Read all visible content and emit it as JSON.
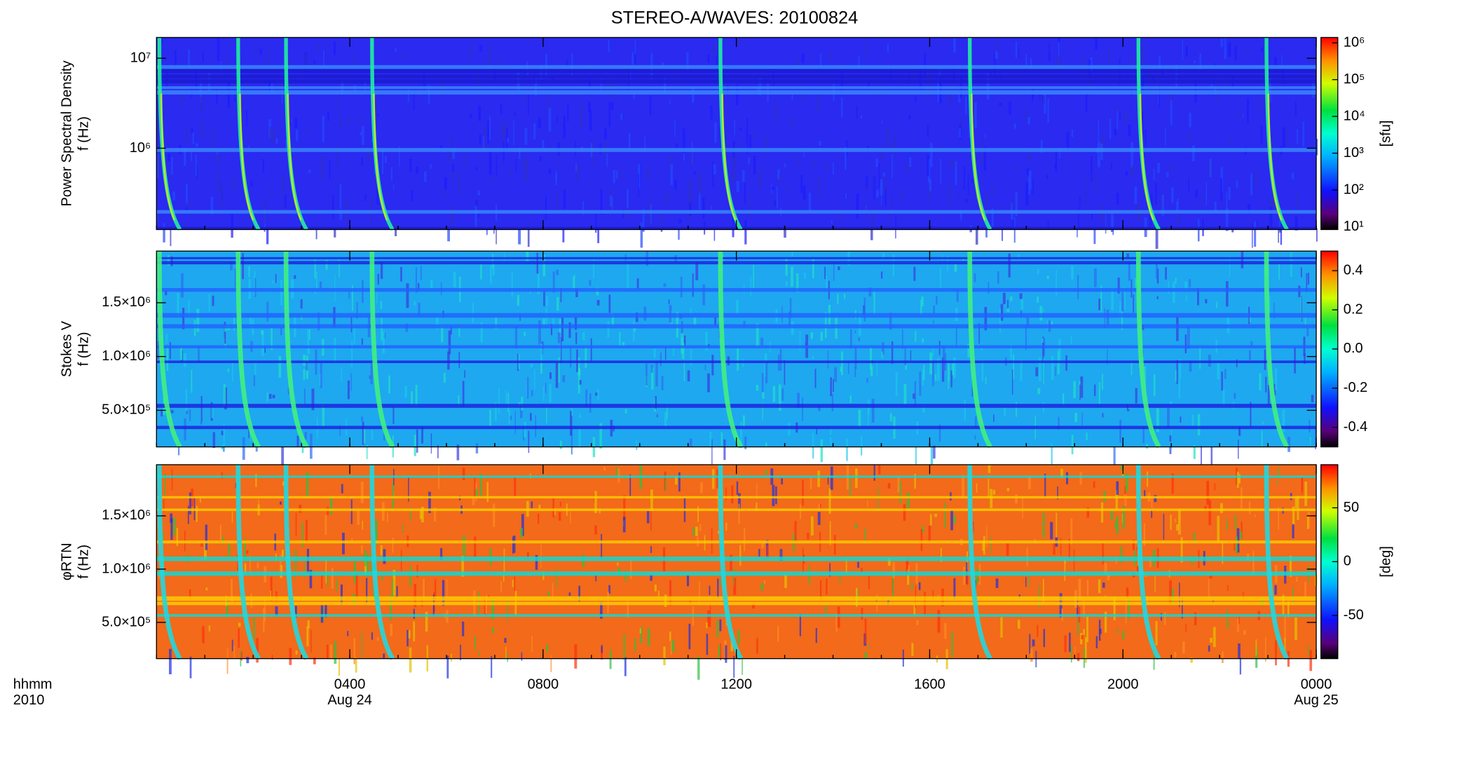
{
  "chart_data": [
    {
      "type": "heatmap",
      "title": "STEREO-A/WAVES: 20100824",
      "ylabel": [
        "Power Spectral Density",
        "f (Hz)"
      ],
      "log_y": true,
      "ylim": [
        125000,
        17000000
      ],
      "yticks": [
        {
          "value": 1000000,
          "label": "10⁶"
        },
        {
          "value": 10000000,
          "label": "10⁷"
        }
      ],
      "xlim": [
        0,
        24
      ],
      "colorbar": {
        "log": true,
        "clim": [
          8.4,
          1400000
        ],
        "label": "[sfu]",
        "ticks": [
          {
            "value": 10,
            "label": "10¹"
          },
          {
            "value": 100,
            "label": "10²"
          },
          {
            "value": 1000,
            "label": "10³"
          },
          {
            "value": 10000,
            "label": "10⁴"
          },
          {
            "value": 100000,
            "label": "10⁵"
          },
          {
            "value": 1000000,
            "label": "10⁶"
          }
        ]
      }
    },
    {
      "type": "heatmap",
      "ylabel": [
        "Stokes V",
        "f (Hz)"
      ],
      "log_y": false,
      "ylim": [
        160000,
        1980000
      ],
      "yticks": [
        {
          "value": 500000,
          "label": "5.0×10⁵"
        },
        {
          "value": 1000000,
          "label": "1.0×10⁶"
        },
        {
          "value": 1500000,
          "label": "1.5×10⁶"
        }
      ],
      "xlim": [
        0,
        24
      ],
      "colorbar": {
        "log": false,
        "clim": [
          -0.5,
          0.5
        ],
        "label": "",
        "ticks": [
          -0.4,
          -0.2,
          {
            "value": 0,
            "label": "0.0"
          },
          0.2,
          0.4
        ]
      }
    },
    {
      "type": "heatmap",
      "ylabel": [
        "φRTN",
        "f (Hz)"
      ],
      "log_y": false,
      "ylim": [
        160000,
        1980000
      ],
      "yticks": [
        {
          "value": 500000,
          "label": "5.0×10⁵"
        },
        {
          "value": 1000000,
          "label": "1.0×10⁶"
        },
        {
          "value": 1500000,
          "label": "1.5×10⁶"
        }
      ],
      "xlim": [
        0,
        24
      ],
      "xticks": [
        {
          "value": 4,
          "label": "0400"
        },
        {
          "value": 8,
          "label": "0800"
        },
        {
          "value": 12,
          "label": "1200"
        },
        {
          "value": 16,
          "label": "1600"
        },
        {
          "value": 20,
          "label": "2000"
        },
        {
          "value": 24,
          "label": "0000"
        }
      ],
      "x_row_labels": [
        "hhmm",
        "2010"
      ],
      "date_labels": [
        {
          "value": 4,
          "label": "Aug 24"
        },
        {
          "value": 24,
          "label": "Aug 25"
        }
      ],
      "colorbar": {
        "log": false,
        "clim": [
          -90,
          90
        ],
        "label": "[deg]",
        "ticks": [
          -50,
          0,
          50
        ]
      }
    }
  ]
}
